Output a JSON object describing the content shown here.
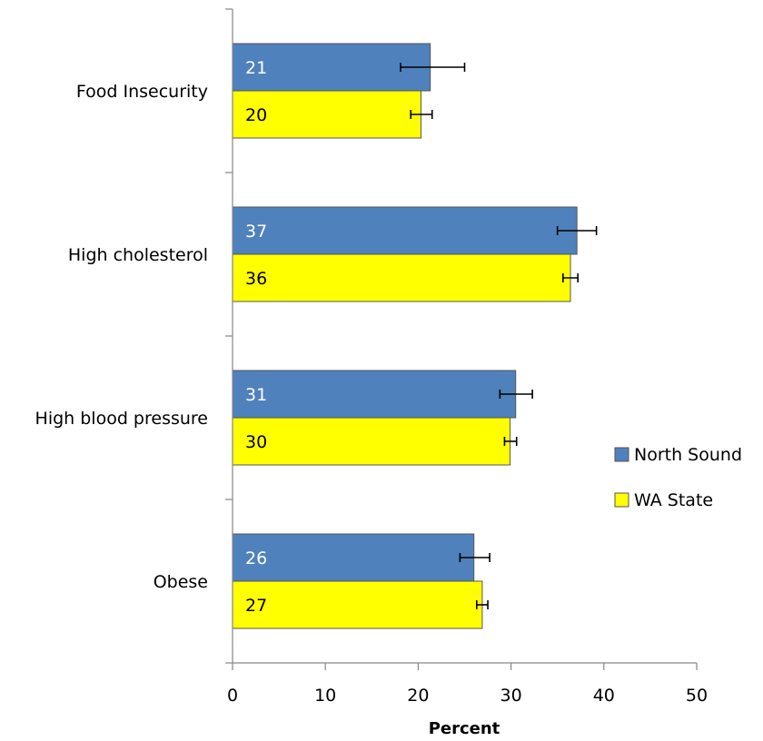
{
  "chart_data": {
    "type": "bar",
    "orientation": "horizontal",
    "title": "",
    "xlabel": "Percent",
    "ylabel": "",
    "xlim": [
      0,
      50
    ],
    "x_ticks": [
      0,
      10,
      20,
      30,
      40,
      50
    ],
    "x_tick_labels": [
      "0",
      "10",
      "20",
      "30",
      "40",
      "50"
    ],
    "grid": false,
    "legend_position": "right",
    "categories": [
      "Food Insecurity",
      "High cholesterol",
      "High blood pressure",
      "Obese"
    ],
    "series": [
      {
        "name": "North Sound",
        "color": "#4f81bd",
        "label_color": "#ffffff",
        "values": [
          21,
          37,
          31,
          26
        ],
        "value_labels": [
          "21",
          "37",
          "31",
          "26"
        ],
        "bar_values": [
          21.3,
          37.1,
          30.5,
          26.0
        ],
        "error_low": [
          18.1,
          35.0,
          28.8,
          24.5
        ],
        "error_high": [
          25.0,
          39.2,
          32.3,
          27.7
        ]
      },
      {
        "name": "WA State",
        "color": "#ffff00",
        "label_color": "#000000",
        "values": [
          20,
          36,
          30,
          27
        ],
        "value_labels": [
          "20",
          "36",
          "30",
          "27"
        ],
        "bar_values": [
          20.3,
          36.4,
          29.9,
          26.9
        ],
        "error_low": [
          19.2,
          35.6,
          29.3,
          26.3
        ],
        "error_high": [
          21.5,
          37.2,
          30.6,
          27.5
        ]
      }
    ]
  }
}
